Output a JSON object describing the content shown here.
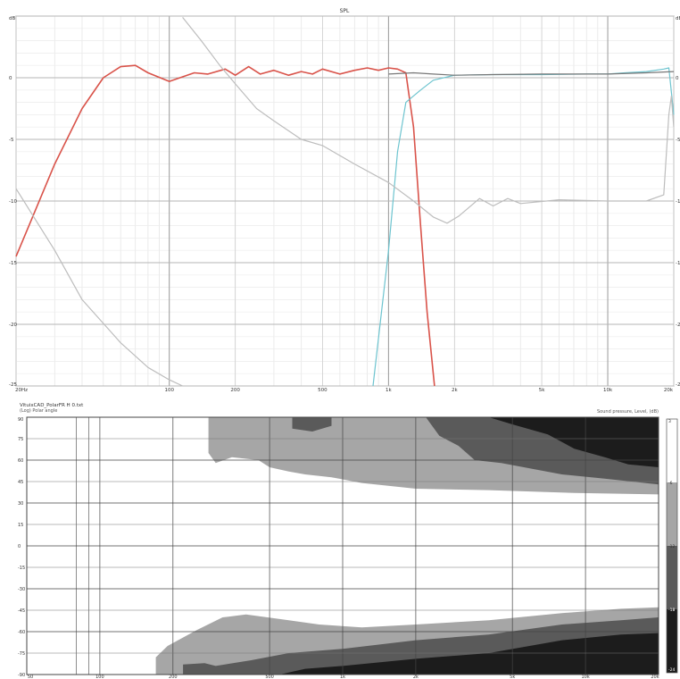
{
  "chart_data": [
    {
      "type": "line",
      "title": "SPL",
      "xlabel": "",
      "ylabel": "",
      "x_scale": "log",
      "xlim": [
        20,
        20000
      ],
      "ylim": [
        -25,
        5
      ],
      "x_ticks": [
        {
          "value": 20,
          "label": "20Hz"
        },
        {
          "value": 100,
          "label": "100"
        },
        {
          "value": 200,
          "label": "200"
        },
        {
          "value": 500,
          "label": "500"
        },
        {
          "value": 1000,
          "label": "1k"
        },
        {
          "value": 2000,
          "label": "2k"
        },
        {
          "value": 5000,
          "label": "5k"
        },
        {
          "value": 10000,
          "label": "10k"
        },
        {
          "value": 20000,
          "label": "20k"
        }
      ],
      "y_ticks": [
        {
          "value": 5,
          "label": "dB"
        },
        {
          "value": 0,
          "label": "0"
        },
        {
          "value": -5,
          "label": "-5"
        },
        {
          "value": -10,
          "label": "-10"
        },
        {
          "value": -15,
          "label": "-15"
        },
        {
          "value": -20,
          "label": "-20"
        },
        {
          "value": -25,
          "label": "-25"
        }
      ],
      "grid": true,
      "series": [
        {
          "color": "#d9534a",
          "points": [
            [
              20,
              -14.5
            ],
            [
              30,
              -7
            ],
            [
              40,
              -2.5
            ],
            [
              50,
              0
            ],
            [
              60,
              0.9
            ],
            [
              70,
              1
            ],
            [
              80,
              0.4
            ],
            [
              100,
              -0.3
            ],
            [
              130,
              0.4
            ],
            [
              150,
              0.3
            ],
            [
              180,
              0.7
            ],
            [
              200,
              0.2
            ],
            [
              230,
              0.9
            ],
            [
              260,
              0.3
            ],
            [
              300,
              0.6
            ],
            [
              350,
              0.2
            ],
            [
              400,
              0.5
            ],
            [
              450,
              0.3
            ],
            [
              500,
              0.7
            ],
            [
              600,
              0.3
            ],
            [
              700,
              0.6
            ],
            [
              800,
              0.8
            ],
            [
              900,
              0.6
            ],
            [
              1000,
              0.8
            ],
            [
              1100,
              0.7
            ],
            [
              1200,
              0.4
            ],
            [
              1300,
              -4
            ],
            [
              1400,
              -12
            ],
            [
              1500,
              -19
            ],
            [
              1620,
              -25
            ]
          ]
        },
        {
          "color": "#6dc4cf",
          "points": [
            [
              850,
              -25
            ],
            [
              1000,
              -14
            ],
            [
              1100,
              -6
            ],
            [
              1200,
              -2
            ],
            [
              1400,
              -1
            ],
            [
              1600,
              -0.2
            ],
            [
              2000,
              0.2
            ],
            [
              3000,
              0.25
            ],
            [
              5000,
              0.25
            ],
            [
              8000,
              0.3
            ],
            [
              10000,
              0.3
            ],
            [
              12000,
              0.4
            ],
            [
              15000,
              0.5
            ],
            [
              18000,
              0.7
            ],
            [
              19000,
              0.8
            ],
            [
              20000,
              -3
            ]
          ]
        },
        {
          "color": "#777777",
          "points": [
            [
              1000,
              0.3
            ],
            [
              1300,
              0.4
            ],
            [
              1600,
              0.3
            ],
            [
              2000,
              0.2
            ],
            [
              3000,
              0.25
            ],
            [
              5000,
              0.3
            ],
            [
              10000,
              0.3
            ],
            [
              15000,
              0.4
            ],
            [
              20000,
              0.5
            ]
          ]
        },
        {
          "color": "#bdbdbd",
          "points": [
            [
              20,
              -9
            ],
            [
              30,
              -14
            ],
            [
              40,
              -18
            ],
            [
              60,
              -21.5
            ],
            [
              80,
              -23.5
            ],
            [
              100,
              -24.5
            ],
            [
              115,
              -25
            ]
          ]
        },
        {
          "color": "#bdbdbd",
          "points": [
            [
              115,
              4.9
            ],
            [
              140,
              3
            ],
            [
              170,
              1
            ],
            [
              200,
              -0.5
            ],
            [
              250,
              -2.5
            ],
            [
              300,
              -3.5
            ],
            [
              400,
              -5
            ],
            [
              500,
              -5.5
            ],
            [
              700,
              -7
            ],
            [
              1000,
              -8.5
            ],
            [
              1300,
              -10
            ],
            [
              1600,
              -11.3
            ],
            [
              1850,
              -11.8
            ],
            [
              2100,
              -11.2
            ],
            [
              2600,
              -9.8
            ],
            [
              3000,
              -10.4
            ],
            [
              3500,
              -9.8
            ],
            [
              4000,
              -10.2
            ],
            [
              6000,
              -9.9
            ],
            [
              10000,
              -10
            ],
            [
              15000,
              -10
            ],
            [
              18000,
              -9.5
            ],
            [
              19000,
              -3
            ],
            [
              19500,
              -1.5
            ],
            [
              20000,
              -4
            ]
          ]
        }
      ]
    },
    {
      "type": "heatmap",
      "title": "VituixCAD_PolarFR H 0.txt",
      "subtitle": "(Log) Polar angle",
      "legend_title": "Sound pressure, Level, (dB)",
      "x_scale": "log",
      "xlim": [
        50,
        20000
      ],
      "ylim": [
        -90,
        90
      ],
      "x_ticks": [
        {
          "value": 50,
          "label": "50"
        },
        {
          "value": 100,
          "label": "100"
        },
        {
          "value": 200,
          "label": "200"
        },
        {
          "value": 500,
          "label": "500"
        },
        {
          "value": 1000,
          "label": "1k"
        },
        {
          "value": 2000,
          "label": "2k"
        },
        {
          "value": 5000,
          "label": "5k"
        },
        {
          "value": 10000,
          "label": "10k"
        },
        {
          "value": 20000,
          "label": "20k"
        }
      ],
      "y_ticks": [
        {
          "value": 90,
          "label": "90"
        },
        {
          "value": 75,
          "label": "75"
        },
        {
          "value": 60,
          "label": "60"
        },
        {
          "value": 45,
          "label": "45"
        },
        {
          "value": 30,
          "label": "30"
        },
        {
          "value": 15,
          "label": "15"
        },
        {
          "value": 0,
          "label": "0"
        },
        {
          "value": -15,
          "label": "-15"
        },
        {
          "value": -30,
          "label": "-30"
        },
        {
          "value": -45,
          "label": "-45"
        },
        {
          "value": -60,
          "label": "-60"
        },
        {
          "value": -75,
          "label": "-75"
        },
        {
          "value": -90,
          "label": "-90"
        }
      ],
      "legend_levels": [
        {
          "label": "3",
          "color": "#ffffff"
        },
        {
          "label": "-6",
          "color": "#a6a6a6"
        },
        {
          "label": "-12",
          "color": "#5a5a5a"
        },
        {
          "label": "-18",
          "color": "#1c1c1c"
        },
        {
          "label": "-24",
          "color": "#1c1c1c"
        }
      ],
      "grid": true,
      "regions": [
        {
          "level": "-6",
          "color": "#a6a6a6",
          "points": [
            [
              280,
              90
            ],
            [
              20000,
              90
            ],
            [
              20000,
              36
            ],
            [
              9000,
              37
            ],
            [
              4000,
              39
            ],
            [
              2000,
              40
            ],
            [
              1200,
              44
            ],
            [
              900,
              48
            ],
            [
              700,
              50
            ],
            [
              600,
              52
            ],
            [
              500,
              55
            ],
            [
              450,
              60
            ],
            [
              350,
              62
            ],
            [
              300,
              58
            ],
            [
              280,
              65
            ],
            [
              280,
              90
            ]
          ]
        },
        {
          "level": "-12",
          "color": "#5a5a5a",
          "points": [
            [
              20000,
              90
            ],
            [
              20000,
              43
            ],
            [
              12000,
              47
            ],
            [
              8000,
              50
            ],
            [
              6000,
              54
            ],
            [
              4500,
              58
            ],
            [
              3500,
              60
            ],
            [
              3000,
              70
            ],
            [
              2500,
              77
            ],
            [
              2200,
              90
            ]
          ]
        },
        {
          "level": "-18",
          "color": "#1c1c1c",
          "points": [
            [
              20000,
              90
            ],
            [
              20000,
              55
            ],
            [
              15000,
              57
            ],
            [
              12000,
              62
            ],
            [
              9000,
              68
            ],
            [
              7000,
              78
            ],
            [
              5000,
              85
            ],
            [
              4000,
              90
            ]
          ]
        },
        {
          "level": "-12",
          "color": "#5a5a5a",
          "points": [
            [
              620,
              90
            ],
            [
              620,
              82
            ],
            [
              750,
              80
            ],
            [
              900,
              84
            ],
            [
              900,
              90
            ]
          ]
        },
        {
          "level": "-6",
          "color": "#a6a6a6",
          "points": [
            [
              170,
              -90
            ],
            [
              170,
              -78
            ],
            [
              190,
              -70
            ],
            [
              250,
              -59
            ],
            [
              320,
              -50
            ],
            [
              400,
              -48
            ],
            [
              600,
              -52
            ],
            [
              800,
              -55
            ],
            [
              1200,
              -57
            ],
            [
              2000,
              -55
            ],
            [
              4000,
              -52
            ],
            [
              8000,
              -47
            ],
            [
              14000,
              -44
            ],
            [
              20000,
              -43
            ],
            [
              20000,
              -90
            ]
          ]
        },
        {
          "level": "-12",
          "color": "#5a5a5a",
          "points": [
            [
              220,
              -90
            ],
            [
              220,
              -83
            ],
            [
              270,
              -82
            ],
            [
              300,
              -84
            ],
            [
              420,
              -80
            ],
            [
              600,
              -75
            ],
            [
              1000,
              -72
            ],
            [
              2000,
              -66
            ],
            [
              4000,
              -62
            ],
            [
              8000,
              -55
            ],
            [
              14000,
              -52
            ],
            [
              20000,
              -50
            ],
            [
              20000,
              -90
            ]
          ]
        },
        {
          "level": "-18",
          "color": "#1c1c1c",
          "points": [
            [
              550,
              -90
            ],
            [
              700,
              -86
            ],
            [
              1000,
              -84
            ],
            [
              2000,
              -79
            ],
            [
              4000,
              -75
            ],
            [
              8000,
              -66
            ],
            [
              14000,
              -62
            ],
            [
              20000,
              -61
            ],
            [
              20000,
              -90
            ]
          ]
        }
      ]
    }
  ]
}
